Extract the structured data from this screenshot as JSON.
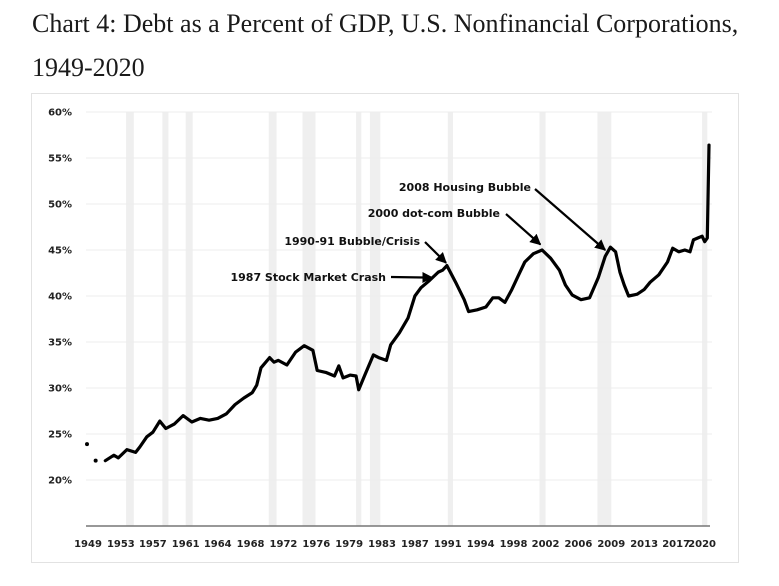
{
  "title": "Chart 4: Debt as a Percent of GDP, U.S. Nonfinancial Corporations, 1949-2020",
  "chart_data": {
    "type": "line",
    "title": "Chart 4: Debt as a Percent of GDP, U.S. Nonfinancial Corporations, 1949-2020",
    "xlabel": "",
    "ylabel": "",
    "xlim": [
      1949,
      2020.8
    ],
    "ylim": [
      15,
      60
    ],
    "grid": "horizontal",
    "legend": "none",
    "x_ticks": [
      "1949",
      "1953",
      "1957",
      "1961",
      "1964",
      "1968",
      "1972",
      "1976",
      "1979",
      "1983",
      "1987",
      "1991",
      "1994",
      "1998",
      "2002",
      "2006",
      "2009",
      "2013",
      "2017",
      "2020"
    ],
    "x_tick_values": [
      1949,
      1952.8,
      1956.5,
      1960.3,
      1964,
      1967.8,
      1971.6,
      1975.4,
      1979.2,
      1983,
      1986.8,
      1990.6,
      1994.4,
      1998.2,
      2001.9,
      2005.7,
      2009.5,
      2013.3,
      2017,
      2020
    ],
    "y_ticks": [
      "20%",
      "25%",
      "30%",
      "35%",
      "40%",
      "45%",
      "50%",
      "55%",
      "60%"
    ],
    "y_tick_values": [
      20,
      25,
      30,
      35,
      40,
      45,
      50,
      55,
      60
    ],
    "isolated_points": [
      {
        "x": 1949.0,
        "y": 23.9
      },
      {
        "x": 1950.0,
        "y": 22.1
      }
    ],
    "series": [
      {
        "name": "Debt as % of GDP",
        "color": "#000000",
        "x": [
          1951.0,
          1952.0,
          1952.5,
          1953.5,
          1954.5,
          1955.0,
          1955.8,
          1956.5,
          1957.3,
          1958.0,
          1959.0,
          1960.0,
          1961.0,
          1962.0,
          1963.0,
          1964.0,
          1965.0,
          1966.0,
          1967.0,
          1968.0,
          1968.5,
          1969.0,
          1970.0,
          1970.5,
          1971.0,
          1972.0,
          1973.0,
          1974.0,
          1975.0,
          1975.5,
          1976.5,
          1977.5,
          1978.0,
          1978.5,
          1979.3,
          1980.0,
          1980.3,
          1981.0,
          1982.0,
          1982.6,
          1983.5,
          1984.0,
          1985.0,
          1986.0,
          1986.8,
          1987.5,
          1988.5,
          1989.5,
          1990.0,
          1990.5,
          1991.5,
          1992.5,
          1993.0,
          1994.0,
          1995.0,
          1995.8,
          1996.5,
          1997.2,
          1998.0,
          1998.8,
          1999.5,
          2000.5,
          2001.5,
          2002.5,
          2003.5,
          2004.2,
          2005.0,
          2006.0,
          2007.0,
          2008.0,
          2008.8,
          2009.4,
          2010.0,
          2010.5,
          2011.0,
          2011.5,
          2012.5,
          2013.3,
          2014.0,
          2015.0,
          2016.0,
          2016.6,
          2017.3,
          2018.0,
          2018.6,
          2019.0,
          2019.5,
          2020.0,
          2020.3,
          2020.6,
          2020.8
        ],
        "values": [
          22.1,
          22.7,
          22.4,
          23.3,
          23.0,
          23.6,
          24.7,
          25.2,
          26.4,
          25.6,
          26.1,
          27.0,
          26.3,
          26.7,
          26.5,
          26.7,
          27.2,
          28.2,
          28.9,
          29.5,
          30.3,
          32.2,
          33.3,
          32.8,
          33.0,
          32.5,
          33.9,
          34.6,
          34.1,
          31.9,
          31.7,
          31.3,
          32.4,
          31.1,
          31.4,
          31.3,
          29.8,
          31.4,
          33.6,
          33.3,
          33.0,
          34.7,
          36.0,
          37.6,
          40.0,
          40.9,
          41.7,
          42.6,
          42.8,
          43.3,
          41.5,
          39.6,
          38.3,
          38.5,
          38.8,
          39.8,
          39.8,
          39.3,
          40.7,
          42.3,
          43.7,
          44.6,
          45.0,
          44.1,
          42.8,
          41.2,
          40.1,
          39.6,
          39.8,
          42.0,
          44.3,
          45.3,
          44.8,
          42.6,
          41.2,
          40.0,
          40.2,
          40.7,
          41.5,
          42.3,
          43.7,
          45.2,
          44.8,
          45.0,
          44.8,
          46.1,
          46.3,
          46.5,
          45.9,
          46.3,
          56.4
        ]
      }
    ],
    "recession_bands": [
      {
        "start": 1953.4,
        "end": 1954.3
      },
      {
        "start": 1957.6,
        "end": 1958.3
      },
      {
        "start": 1960.3,
        "end": 1961.1
      },
      {
        "start": 1969.9,
        "end": 1970.8
      },
      {
        "start": 1973.8,
        "end": 1975.3
      },
      {
        "start": 1980.0,
        "end": 1980.6
      },
      {
        "start": 1981.6,
        "end": 1982.8
      },
      {
        "start": 1990.6,
        "end": 1991.2
      },
      {
        "start": 2001.2,
        "end": 2001.9
      },
      {
        "start": 2007.9,
        "end": 2009.5
      },
      {
        "start": 2020.0,
        "end": 2020.6
      }
    ],
    "annotations": [
      {
        "text": "2008 Housing Bubble",
        "target_x": 2008.8,
        "target_y": 45.0
      },
      {
        "text": "2000 dot-com Bubble",
        "target_x": 2001.3,
        "target_y": 45.6
      },
      {
        "text": "1990-91 Bubble/Crisis",
        "target_x": 1990.4,
        "target_y": 43.6
      },
      {
        "text": "1987 Stock Market Crash",
        "target_x": 1988.8,
        "target_y": 42.0
      }
    ]
  }
}
